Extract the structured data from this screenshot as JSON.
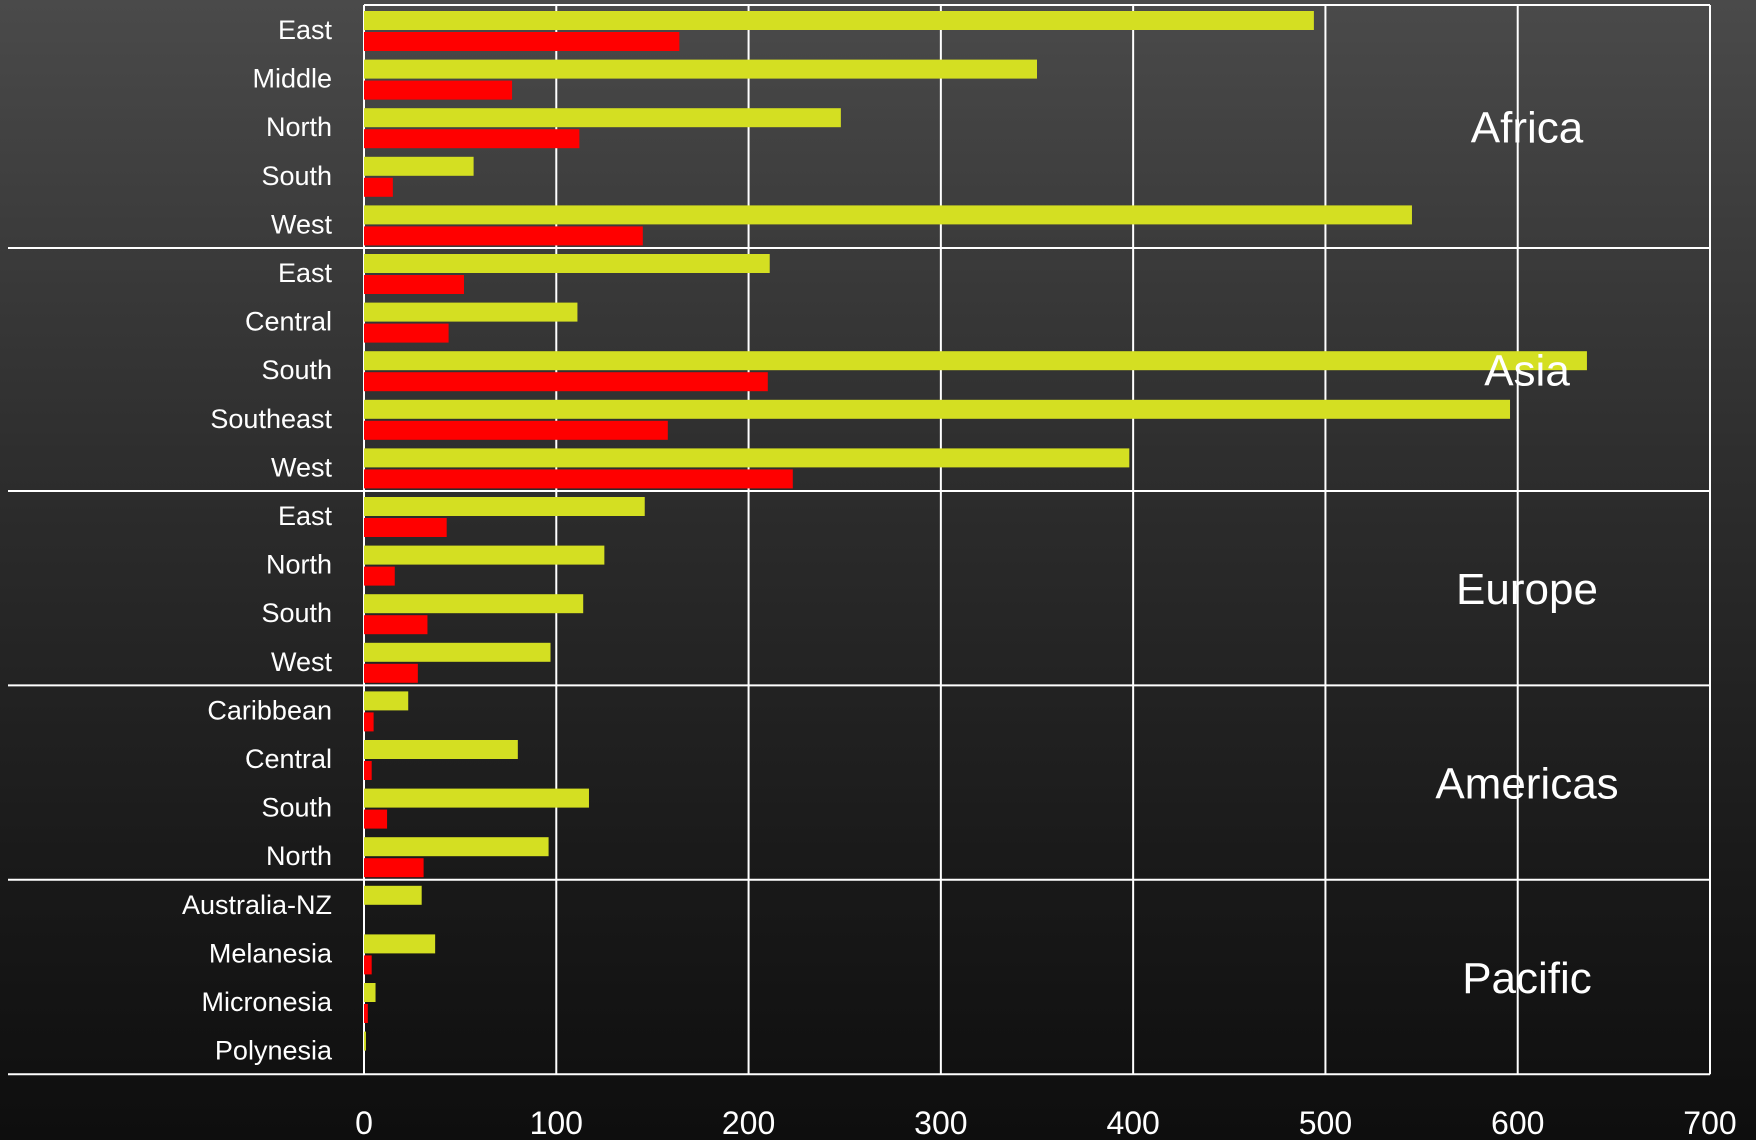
{
  "chart_data": {
    "type": "bar",
    "orientation": "horizontal",
    "xlim": [
      0,
      700
    ],
    "x_ticks": [
      0,
      100,
      200,
      300,
      400,
      500,
      600,
      700
    ],
    "grid": true,
    "colors": {
      "series_a": "#d4df22",
      "series_b": "#ff0000",
      "grid": "#ffffff",
      "text": "#ffffff"
    },
    "groups": [
      {
        "name": "Africa",
        "categories": [
          {
            "label": "East",
            "values": [
              494,
              164
            ]
          },
          {
            "label": "Middle",
            "values": [
              350,
              77
            ]
          },
          {
            "label": "North",
            "values": [
              248,
              112
            ]
          },
          {
            "label": "South",
            "values": [
              57,
              15
            ]
          },
          {
            "label": "West",
            "values": [
              545,
              145
            ]
          }
        ]
      },
      {
        "name": "Asia",
        "categories": [
          {
            "label": "East",
            "values": [
              211,
              52
            ]
          },
          {
            "label": "Central",
            "values": [
              111,
              44
            ]
          },
          {
            "label": "South",
            "values": [
              636,
              210
            ]
          },
          {
            "label": "Southeast",
            "values": [
              596,
              158
            ]
          },
          {
            "label": "West",
            "values": [
              398,
              223
            ]
          }
        ]
      },
      {
        "name": "Europe",
        "categories": [
          {
            "label": "East",
            "values": [
              146,
              43
            ]
          },
          {
            "label": "North",
            "values": [
              125,
              16
            ]
          },
          {
            "label": "South",
            "values": [
              114,
              33
            ]
          },
          {
            "label": "West",
            "values": [
              97,
              28
            ]
          }
        ]
      },
      {
        "name": "Americas",
        "categories": [
          {
            "label": "Caribbean",
            "values": [
              23,
              5
            ]
          },
          {
            "label": "Central",
            "values": [
              80,
              4
            ]
          },
          {
            "label": "South",
            "values": [
              117,
              12
            ]
          },
          {
            "label": "North",
            "values": [
              96,
              31
            ]
          }
        ]
      },
      {
        "name": "Pacific",
        "categories": [
          {
            "label": "Australia-NZ",
            "values": [
              30,
              0
            ]
          },
          {
            "label": "Melanesia",
            "values": [
              37,
              4
            ]
          },
          {
            "label": "Micronesia",
            "values": [
              6,
              2
            ]
          },
          {
            "label": "Polynesia",
            "values": [
              1,
              0
            ]
          }
        ]
      }
    ]
  }
}
